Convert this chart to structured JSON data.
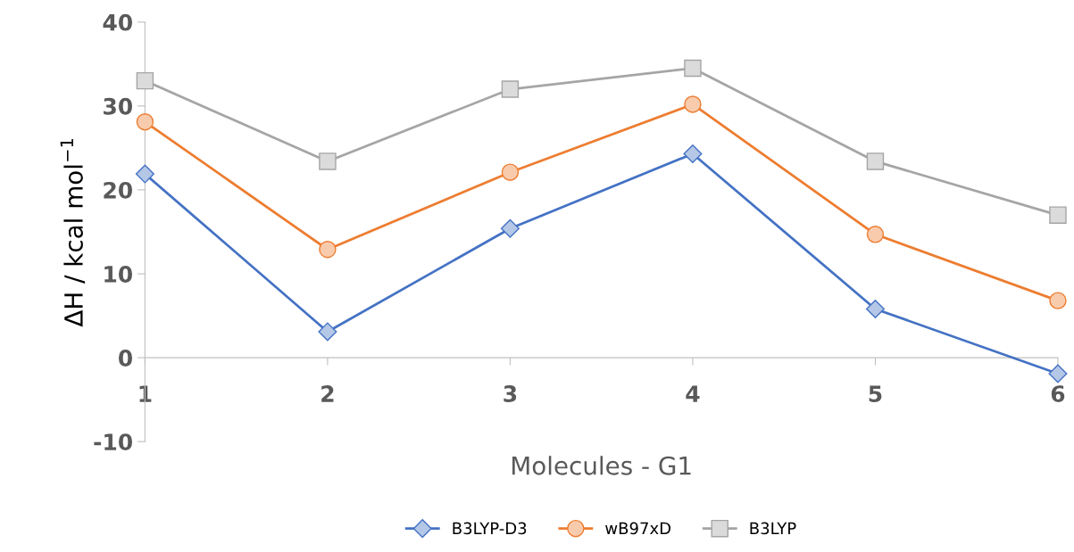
{
  "chart_data": {
    "type": "line",
    "xlabel": "Molecules - G1",
    "ylabel": "ΔH / kcal mol$^{−1}$",
    "categories": [
      "1",
      "2",
      "3",
      "4",
      "5",
      "6"
    ],
    "series": [
      {
        "name": "B3LYP-D3",
        "color": "#4472c4",
        "marker": "diamond",
        "values": [
          21.9,
          3.1,
          15.4,
          24.3,
          5.8,
          -1.9
        ]
      },
      {
        "name": "wB97xD",
        "color": "#ed7d31",
        "marker": "circle",
        "values": [
          28.1,
          12.9,
          22.1,
          30.2,
          14.7,
          6.8
        ]
      },
      {
        "name": "B3LYP",
        "color": "#a5a5a5",
        "marker": "square",
        "values": [
          33.0,
          23.4,
          32.0,
          34.5,
          23.4,
          17.0
        ]
      }
    ],
    "ylim": [
      -10,
      40
    ],
    "yticks": [
      -10,
      0,
      10,
      20,
      30,
      40
    ],
    "grid": false,
    "legend": "bottom",
    "line_style": "solid"
  }
}
